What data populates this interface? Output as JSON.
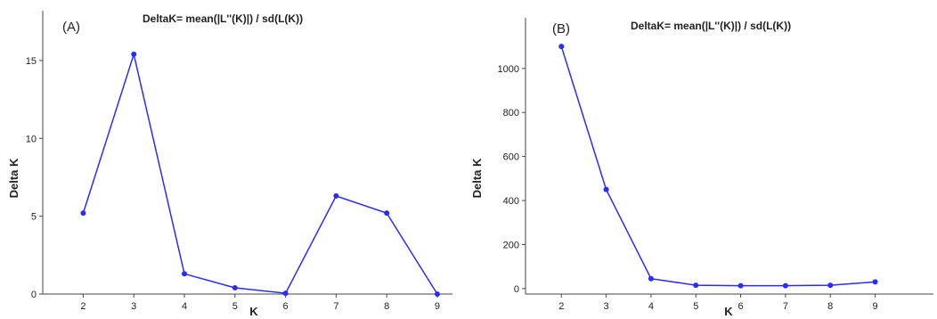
{
  "chart_data": [
    {
      "type": "line",
      "panel_label": "(A)",
      "title": "DeltaK= mean(|L''(K)|) / sd(L(K))",
      "xlabel": "K",
      "ylabel": "Delta K",
      "x": [
        2,
        3,
        4,
        5,
        6,
        7,
        8,
        9
      ],
      "xticks": [
        "2",
        "3",
        "4",
        "5",
        "6",
        "7",
        "8",
        "9"
      ],
      "yticks": [
        "0",
        "5",
        "10",
        "15"
      ],
      "ytick_values": [
        0,
        5,
        10,
        15
      ],
      "xlim": [
        1.2,
        9.3
      ],
      "ylim": [
        0,
        18.2
      ],
      "grid": false,
      "color": "#2b2bff",
      "series": [
        {
          "values": [
            5.2,
            15.4,
            1.3,
            0.4,
            0.05,
            6.3,
            5.2,
            0.0
          ]
        }
      ]
    },
    {
      "type": "line",
      "panel_label": "(B)",
      "title": "DeltaK= mean(|L''(K)|) / sd(L(K))",
      "xlabel": "K",
      "ylabel": "Delta K",
      "x": [
        2,
        3,
        4,
        5,
        6,
        7,
        8,
        9
      ],
      "xticks": [
        "2",
        "3",
        "4",
        "5",
        "6",
        "7",
        "8",
        "9"
      ],
      "yticks": [
        "0",
        "200",
        "400",
        "600",
        "800",
        "1000"
      ],
      "ytick_values": [
        0,
        200,
        400,
        600,
        800,
        1000
      ],
      "xlim": [
        1.2,
        10.3
      ],
      "ylim": [
        -25,
        1230
      ],
      "grid": false,
      "color": "#2b2bff",
      "series": [
        {
          "values": [
            1100,
            450,
            45,
            15,
            13,
            13,
            15,
            30
          ]
        }
      ]
    }
  ]
}
